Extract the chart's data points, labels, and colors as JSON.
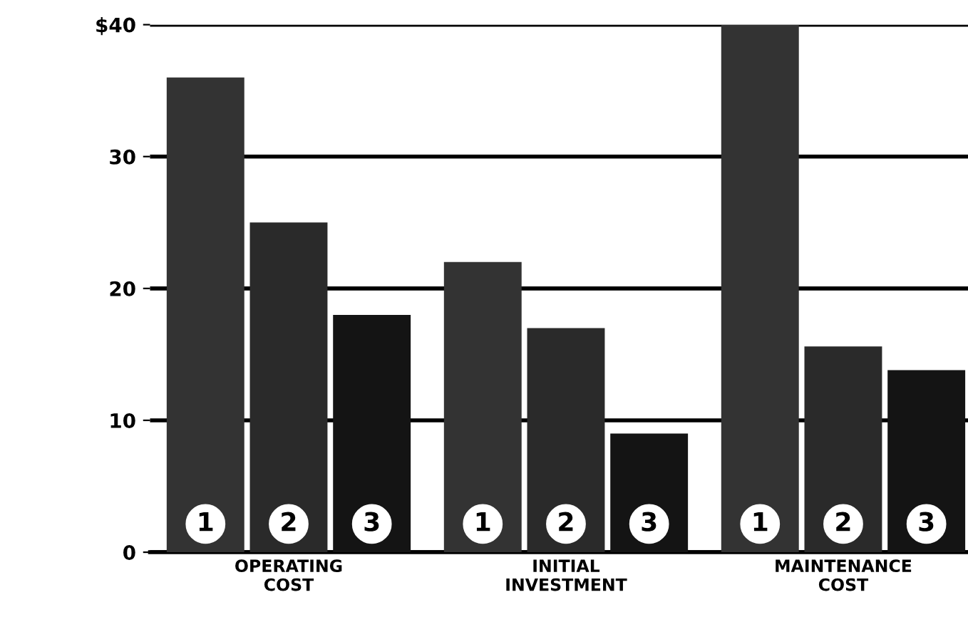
{
  "chart_data": {
    "type": "bar",
    "categories": [
      "OPERATING\nCOST",
      "INITIAL\nINVESTMENT",
      "MAINTENANCE\nCOST"
    ],
    "series": [
      {
        "name": "1",
        "color": "#333333",
        "values": [
          36,
          22,
          40
        ]
      },
      {
        "name": "2",
        "color": "#2a2a2a",
        "values": [
          25,
          17,
          15.6
        ]
      },
      {
        "name": "3",
        "color": "#141414",
        "values": [
          18,
          9,
          13.8
        ]
      }
    ],
    "ylim": [
      0,
      40
    ],
    "yticks": [
      0,
      10,
      20,
      30,
      {
        "value": 40,
        "label": "$40"
      }
    ],
    "grid": "y",
    "legend": false
  }
}
